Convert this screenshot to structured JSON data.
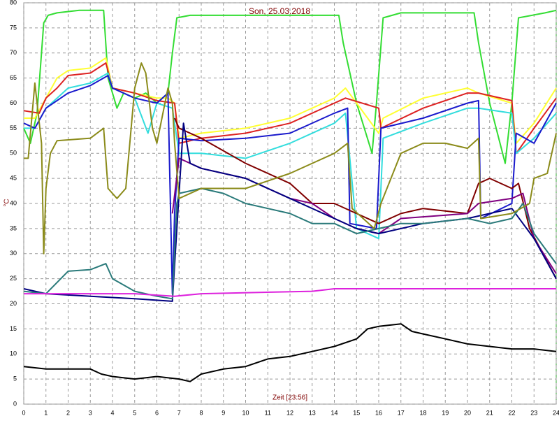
{
  "chart_data": {
    "type": "line",
    "title": "Son, 25.03.2018",
    "x_label": "Zeit [23:56]",
    "y_label": "°C",
    "xlim": [
      0,
      24
    ],
    "xticks": [
      0,
      1,
      2,
      3,
      4,
      5,
      6,
      7,
      8,
      9,
      10,
      11,
      12,
      13,
      14,
      15,
      16,
      17,
      18,
      19,
      20,
      21,
      22,
      23,
      24
    ],
    "ylim": [
      0,
      80
    ],
    "yticks": [
      0,
      5,
      10,
      15,
      20,
      25,
      30,
      35,
      40,
      45,
      50,
      55,
      60,
      65,
      70,
      75,
      80
    ],
    "grid": true,
    "series": [
      {
        "color": "#33dd33",
        "x": [
          0,
          0.3,
          0.6,
          0.9,
          1.1,
          1.5,
          2.5,
          3.6,
          3.8,
          4.2,
          4.5,
          5,
          5.5,
          6,
          6.5,
          6.7,
          6.9,
          7.5,
          10,
          14.2,
          14.4,
          15,
          15.7,
          15.9,
          16.2,
          17,
          20.3,
          20.5,
          21,
          21.7,
          22,
          22.3,
          23.5,
          24
        ],
        "values": [
          55,
          52,
          58,
          76,
          77.5,
          78,
          78.5,
          78.5,
          65,
          59,
          62,
          61,
          62,
          60,
          62,
          70,
          77,
          77.5,
          77.5,
          77.5,
          72,
          60,
          50,
          60,
          77,
          78,
          78,
          72,
          60,
          48,
          60,
          77,
          78,
          78.5
        ]
      },
      {
        "color": "#ffff33",
        "x": [
          0,
          0.5,
          1,
          1.5,
          2,
          3,
          3.7,
          4,
          5,
          6,
          6.5,
          6.8,
          7,
          8,
          10,
          12,
          14,
          14.5,
          15,
          16,
          16.2,
          18,
          20,
          20.5,
          22,
          22.2,
          23,
          24
        ],
        "values": [
          57,
          57,
          61,
          65,
          66.5,
          67,
          69,
          63,
          62,
          61,
          61,
          60,
          53,
          54,
          55,
          57,
          61,
          63,
          60,
          54,
          57,
          61,
          63,
          62,
          60,
          52,
          56,
          63
        ]
      },
      {
        "color": "#dd2222",
        "x": [
          0,
          0.7,
          1,
          1.5,
          2,
          3,
          3.7,
          4,
          5,
          6,
          6.8,
          7,
          8,
          10,
          12,
          14,
          14.5,
          16,
          16.1,
          18,
          20,
          20.5,
          22,
          22.2,
          23,
          24
        ],
        "values": [
          58.5,
          58,
          61,
          63,
          65.5,
          66,
          68,
          63,
          62,
          60.5,
          60,
          52,
          53,
          54,
          56,
          60,
          61,
          59,
          55,
          59,
          62,
          62,
          60.5,
          50,
          55,
          61
        ]
      },
      {
        "color": "#33dddd",
        "x": [
          0,
          0.5,
          1,
          2,
          3,
          3.8,
          4,
          5,
          5.6,
          6,
          6.7,
          7,
          8,
          10,
          12,
          14,
          14.5,
          15,
          16,
          16.2,
          18,
          20,
          20.5,
          22,
          22.2,
          23,
          24
        ],
        "values": [
          55,
          55,
          59,
          63,
          64,
          66,
          63,
          61,
          54,
          60,
          59,
          50,
          50,
          49,
          52,
          56,
          58,
          35,
          33,
          53,
          56,
          59,
          59,
          58,
          50,
          53,
          58
        ]
      },
      {
        "color": "#1a1acc",
        "x": [
          0,
          0.5,
          1,
          2,
          3,
          3.8,
          4,
          5,
          6,
          6.5,
          6.7,
          6.8,
          7,
          8,
          10,
          12,
          14,
          14.6,
          14.7,
          15.9,
          16.1,
          18,
          20,
          20.5,
          20.6,
          22,
          22.2,
          23,
          24
        ],
        "values": [
          56,
          55,
          59,
          62,
          63.5,
          65.5,
          63,
          61,
          60,
          62,
          22,
          38,
          53,
          52.5,
          53,
          54,
          58,
          59,
          36,
          35,
          55,
          57,
          60,
          60.5,
          37,
          40,
          54,
          52,
          60
        ]
      },
      {
        "color": "#800000",
        "x": [
          6.8,
          7,
          8,
          10,
          12,
          13,
          14,
          15,
          16,
          17,
          18,
          20,
          20.5,
          21,
          22,
          22.3,
          22.8,
          24
        ],
        "values": [
          57,
          55,
          53,
          48,
          44,
          40,
          40,
          38,
          36,
          38,
          39,
          38,
          44,
          45,
          43,
          44,
          35,
          25
        ]
      },
      {
        "color": "#800080",
        "x": [
          6.7,
          7,
          8,
          10,
          12,
          13,
          14,
          15,
          16,
          17,
          20,
          20.5,
          22,
          22.5,
          23,
          24
        ],
        "values": [
          38,
          49,
          47,
          45,
          41,
          40,
          37,
          35,
          34,
          37,
          38,
          40,
          41,
          42,
          33,
          26
        ]
      },
      {
        "color": "#000080",
        "x": [
          0,
          1,
          3,
          5,
          6.7,
          6.9,
          7.2,
          7.5,
          8,
          10,
          12,
          14,
          15,
          16,
          18,
          20,
          22,
          23,
          24
        ],
        "values": [
          23,
          22,
          21.5,
          21,
          20.5,
          35,
          56,
          48,
          47,
          45,
          41,
          37,
          35,
          34,
          36,
          37,
          39,
          33,
          25
        ]
      },
      {
        "color": "#2a7a7a",
        "x": [
          0,
          1,
          2,
          3,
          3.7,
          4,
          5,
          6,
          6.7,
          6.9,
          7,
          8,
          9,
          10,
          11,
          12,
          13,
          14,
          15,
          16,
          17,
          18,
          20,
          21,
          22,
          22.5,
          23,
          24
        ],
        "values": [
          22.5,
          22,
          26.5,
          26.8,
          28,
          25,
          22.5,
          21.5,
          21,
          40,
          42,
          43,
          42,
          40,
          39,
          38,
          36,
          36,
          34,
          35,
          36,
          36,
          37,
          36,
          37,
          40,
          34,
          28
        ]
      },
      {
        "color": "#8b8b1a",
        "x": [
          0,
          0.2,
          0.5,
          0.8,
          0.9,
          1,
          1.2,
          1.5,
          3,
          3.6,
          3.8,
          4.2,
          4.6,
          5,
          5.3,
          5.5,
          5.8,
          6,
          6.5,
          6.7,
          6.8,
          7,
          8,
          10,
          12,
          13,
          14,
          14.6,
          14.8,
          15.8,
          16.1,
          17,
          18,
          19,
          20,
          20.5,
          20.6,
          22,
          22.8,
          23,
          23.6,
          24
        ],
        "values": [
          49,
          49,
          64,
          52,
          30,
          43,
          50,
          52.5,
          53,
          55,
          43,
          41,
          43,
          63,
          68,
          66,
          55,
          52,
          63,
          60,
          52,
          41,
          43,
          43,
          46,
          48,
          50,
          52,
          39,
          35,
          40,
          50,
          52,
          52,
          51,
          53,
          37,
          38,
          40,
          45,
          46,
          54
        ]
      },
      {
        "color": "#dd22dd",
        "x": [
          0,
          5,
          6.8,
          8,
          13,
          14,
          24
        ],
        "values": [
          22,
          22,
          21.5,
          22,
          22.5,
          23,
          23
        ]
      },
      {
        "color": "#000000",
        "x": [
          0,
          1,
          2,
          3,
          3.5,
          4,
          5,
          6,
          7,
          7.5,
          8,
          9,
          10,
          11,
          12,
          13,
          14,
          15,
          15.5,
          16,
          17,
          17.5,
          18,
          19,
          20,
          21,
          22,
          23,
          24
        ],
        "values": [
          7.5,
          7,
          7,
          7,
          6,
          5.5,
          5,
          5.5,
          5,
          4.5,
          6,
          7,
          7.5,
          9,
          9.5,
          10.5,
          11.5,
          13,
          15,
          15.5,
          16,
          14.5,
          14,
          13,
          12,
          11.5,
          11,
          11,
          10.5
        ]
      }
    ]
  }
}
